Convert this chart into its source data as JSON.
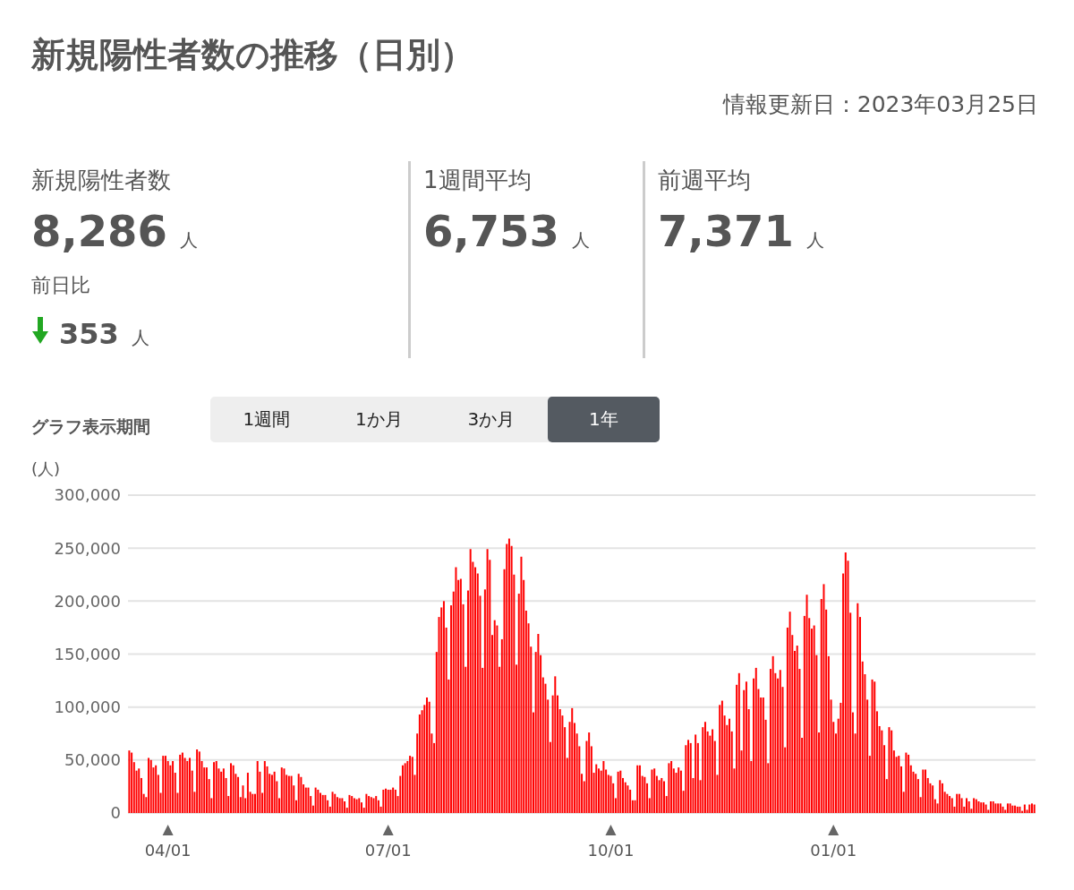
{
  "chart_data": [
    {
      "type": "other",
      "title": "新規陽性者数の推移（日別）",
      "subtitle": "情報更新日：2023年03月25日",
      "annotations": [
        "新規陽性者数",
        "8,286",
        "人",
        "前日比",
        "353",
        "人",
        "1週間平均",
        "6,753",
        "人",
        "前週平均",
        "7,371",
        "人",
        "グラフ表示期間",
        "1週間",
        "1か月",
        "3か月",
        "1年"
      ]
    },
    {
      "type": "bar",
      "ylabel": "(人)",
      "color": "#ff0000",
      "grid": "y",
      "ylim": [
        0,
        300000
      ],
      "yticks": [
        {
          "value": 0,
          "label": "0"
        },
        {
          "value": 50000,
          "label": "50,000"
        },
        {
          "value": 100000,
          "label": "100,000"
        },
        {
          "value": 150000,
          "label": "150,000"
        },
        {
          "value": 200000,
          "label": "200,000"
        },
        {
          "value": 250000,
          "label": "250,000"
        },
        {
          "value": 300000,
          "label": "300,000"
        }
      ],
      "categories": [
        null,
        null,
        null,
        null,
        null,
        null,
        null,
        null,
        null,
        null,
        null,
        null,
        null,
        null,
        null,
        null,
        "04/01",
        null,
        null,
        null,
        null,
        null,
        null,
        null,
        null,
        null,
        null,
        null,
        null,
        null,
        null,
        null,
        null,
        null,
        null,
        null,
        null,
        null,
        null,
        null,
        null,
        null,
        null,
        null,
        null,
        null,
        null,
        null,
        null,
        null,
        null,
        null,
        null,
        null,
        null,
        null,
        null,
        null,
        null,
        null,
        null,
        null,
        null,
        null,
        null,
        null,
        null,
        null,
        null,
        null,
        null,
        null,
        null,
        null,
        null,
        null,
        null,
        null,
        null,
        null,
        null,
        null,
        null,
        null,
        null,
        null,
        null,
        null,
        null,
        null,
        null,
        null,
        null,
        null,
        null,
        null,
        null,
        null,
        null,
        null,
        null,
        null,
        null,
        null,
        null,
        null,
        null,
        "07/01",
        null,
        null,
        null,
        null,
        null,
        null,
        null,
        null,
        null,
        null,
        null,
        null,
        null,
        null,
        null,
        null,
        null,
        null,
        null,
        null,
        null,
        null,
        null,
        null,
        null,
        null,
        null,
        null,
        null,
        null,
        null,
        null,
        null,
        null,
        null,
        null,
        null,
        null,
        null,
        null,
        null,
        null,
        null,
        null,
        null,
        null,
        null,
        null,
        null,
        null,
        null,
        null,
        null,
        null,
        null,
        null,
        null,
        null,
        null,
        null,
        null,
        null,
        null,
        null,
        null,
        null,
        null,
        null,
        null,
        null,
        null,
        null,
        null,
        null,
        null,
        null,
        null,
        null,
        null,
        null,
        null,
        null,
        null,
        null,
        null,
        null,
        null,
        null,
        null,
        null,
        null,
        "10/01",
        null,
        null,
        null,
        null,
        null,
        null,
        null,
        null,
        null,
        null,
        null,
        null,
        null,
        null,
        null,
        null,
        null,
        null,
        null,
        null,
        null,
        null,
        null,
        null,
        null,
        null,
        null,
        null,
        null,
        null,
        null,
        null,
        null,
        null,
        null,
        null,
        null,
        null,
        null,
        null,
        null,
        null,
        null,
        null,
        null,
        null,
        null,
        null,
        null,
        null,
        null,
        null,
        null,
        null,
        null,
        null,
        null,
        null,
        null,
        null,
        null,
        null,
        null,
        null,
        null,
        null,
        null,
        null,
        null,
        null,
        null,
        null,
        null,
        null,
        null,
        null,
        null,
        null,
        null,
        null,
        null,
        null,
        null,
        null,
        null,
        null,
        null,
        null,
        null,
        null,
        null,
        "01/01",
        null,
        null,
        null,
        null,
        null,
        null,
        null,
        null,
        null,
        null,
        null,
        null,
        null,
        null,
        null,
        null,
        null,
        null,
        null,
        null,
        null,
        null,
        null,
        null,
        null,
        null,
        null,
        null,
        null,
        null,
        null,
        null,
        null,
        null,
        null,
        null,
        null,
        null,
        null,
        null,
        null,
        null,
        null,
        null,
        null,
        null,
        null,
        null,
        null,
        null,
        null,
        null,
        null,
        null,
        null,
        null,
        null,
        null,
        null,
        null,
        null,
        null,
        null,
        null,
        null,
        null,
        null,
        null,
        null,
        null,
        null,
        null,
        null,
        null,
        null,
        null,
        null,
        null,
        null,
        null,
        null,
        null,
        null
      ],
      "values": [
        59000,
        57000,
        48000,
        40000,
        42000,
        33000,
        18000,
        15000,
        52000,
        50000,
        43000,
        45000,
        36000,
        19000,
        54000,
        54000,
        49000,
        45000,
        49000,
        38000,
        19000,
        55000,
        57000,
        52000,
        49000,
        52000,
        40000,
        20000,
        60000,
        58000,
        49000,
        43000,
        43000,
        32000,
        14000,
        48000,
        49000,
        42000,
        39000,
        42000,
        33000,
        16000,
        47000,
        45000,
        37000,
        34000,
        15000,
        26000,
        14000,
        38000,
        20000,
        18000,
        18000,
        49000,
        39000,
        19000,
        49000,
        44000,
        37000,
        36000,
        39000,
        30000,
        14000,
        43000,
        42000,
        36000,
        35000,
        35000,
        26000,
        12000,
        37000,
        34000,
        27000,
        24000,
        24000,
        16000,
        7000,
        24000,
        22000,
        19000,
        17000,
        17000,
        12000,
        6000,
        20000,
        18000,
        15000,
        14000,
        14000,
        11000,
        5000,
        17000,
        16000,
        14000,
        13000,
        14000,
        10000,
        5000,
        18000,
        16000,
        15000,
        14000,
        16000,
        12000,
        6000,
        22000,
        23000,
        22000,
        22000,
        24000,
        22000,
        16000,
        35000,
        45000,
        47000,
        49000,
        54000,
        53000,
        36000,
        75000,
        93000,
        97000,
        102000,
        109000,
        105000,
        75000,
        66000,
        152000,
        185000,
        194000,
        200000,
        175000,
        126000,
        196000,
        209000,
        232000,
        220000,
        221000,
        197000,
        138000,
        210000,
        249000,
        237000,
        232000,
        226000,
        205000,
        137000,
        211000,
        249000,
        239000,
        168000,
        182000,
        177000,
        138000,
        164000,
        230000,
        254000,
        259000,
        252000,
        225000,
        140000,
        207000,
        242000,
        220000,
        191000,
        179000,
        157000,
        95000,
        152000,
        169000,
        149000,
        128000,
        122000,
        107000,
        67000,
        111000,
        129000,
        111000,
        98000,
        92000,
        81000,
        52000,
        86000,
        99000,
        85000,
        75000,
        63000,
        37000,
        30000,
        68000,
        76000,
        63000,
        38000,
        46000,
        42000,
        40000,
        49000,
        41000,
        36000,
        35000,
        28000,
        14000,
        39000,
        40000,
        33000,
        29000,
        26000,
        22000,
        12000,
        12000,
        45000,
        45000,
        35000,
        34000,
        28000,
        14000,
        41000,
        42000,
        35000,
        31000,
        33000,
        30000,
        16000,
        47000,
        49000,
        42000,
        38000,
        43000,
        40000,
        21000,
        64000,
        69000,
        66000,
        33000,
        74000,
        66000,
        31000,
        81000,
        86000,
        77000,
        73000,
        79000,
        68000,
        36000,
        102000,
        106000,
        92000,
        83000,
        89000,
        77000,
        42000,
        121000,
        132000,
        59000,
        116000,
        124000,
        98000,
        49000,
        127000,
        137000,
        117000,
        109000,
        109000,
        88000,
        47000,
        136000,
        148000,
        132000,
        127000,
        135000,
        119000,
        62000,
        175000,
        190000,
        168000,
        153000,
        158000,
        136000,
        71000,
        186000,
        206000,
        184000,
        174000,
        177000,
        149000,
        76000,
        202000,
        216000,
        192000,
        148000,
        107000,
        86000,
        75000,
        89000,
        104000,
        226000,
        246000,
        238000,
        189000,
        95000,
        75000,
        198000,
        185000,
        143000,
        131000,
        107000,
        54000,
        126000,
        124000,
        96000,
        82000,
        78000,
        64000,
        32000,
        81000,
        78000,
        59000,
        53000,
        54000,
        44000,
        20000,
        57000,
        55000,
        45000,
        39000,
        37000,
        32000,
        15000,
        41000,
        41000,
        33000,
        28000,
        26000,
        13000,
        9000,
        31000,
        28000,
        20000,
        18000,
        16000,
        14000,
        6000,
        18000,
        18000,
        14000,
        6000,
        14000,
        11000,
        4000,
        14000,
        13000,
        11000,
        10000,
        10000,
        8000,
        3000,
        11000,
        11000,
        9000,
        9000,
        9000,
        6000,
        3000,
        9000,
        9000,
        7000,
        7000,
        6000,
        6000,
        2000,
        8000,
        3000,
        8000,
        9000,
        8000
      ]
    }
  ]
}
